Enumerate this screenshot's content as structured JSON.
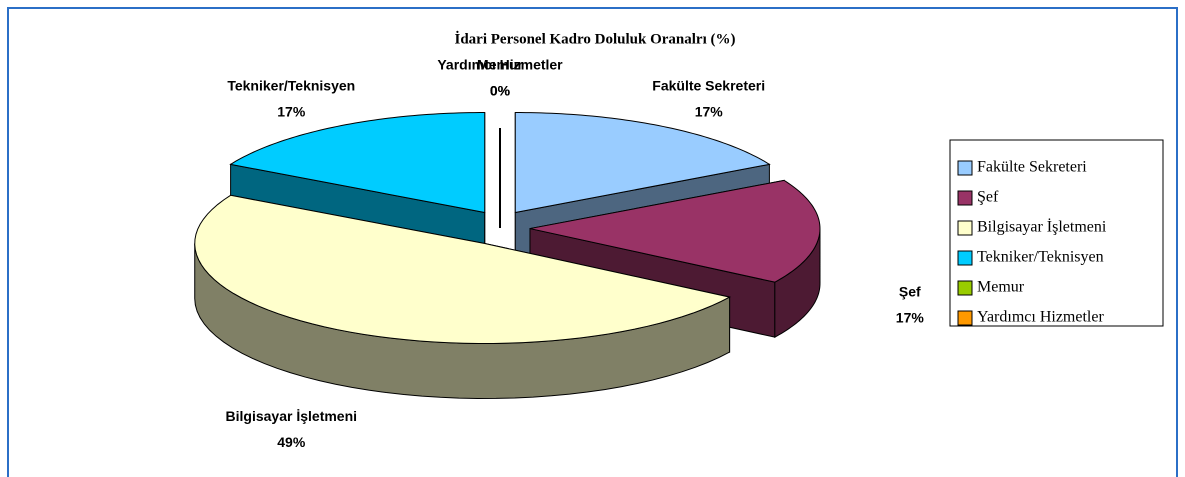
{
  "chart_data": {
    "type": "pie3d",
    "title": "İdari Personel Kadro Doluluk Oranalrı (%)",
    "categories": [
      "Fakülte Sekreteri",
      "Şef",
      "Bilgisayar İşletmeni",
      "Tekniker/Teknisyen",
      "Memur",
      "Yardımcı Hizmetler"
    ],
    "values": [
      17,
      17,
      49,
      17,
      0,
      0
    ],
    "value_labels": [
      "17%",
      "17%",
      "49%",
      "17%",
      "0%",
      "0%"
    ],
    "colors": [
      "#99ccff",
      "#993366",
      "#ffffcc",
      "#00ccff",
      "#99cc00",
      "#ff9900"
    ],
    "legend": "right"
  }
}
